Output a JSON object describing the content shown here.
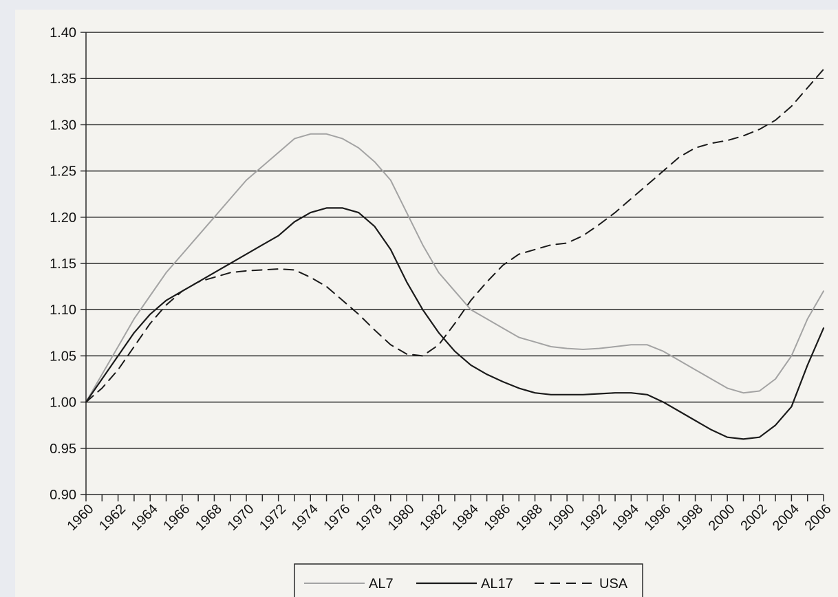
{
  "chart_data": {
    "type": "line",
    "x": [
      1960,
      1961,
      1962,
      1963,
      1964,
      1965,
      1966,
      1967,
      1968,
      1969,
      1970,
      1971,
      1972,
      1973,
      1974,
      1975,
      1976,
      1977,
      1978,
      1979,
      1980,
      1981,
      1982,
      1983,
      1984,
      1985,
      1986,
      1987,
      1988,
      1989,
      1990,
      1991,
      1992,
      1993,
      1994,
      1995,
      1996,
      1997,
      1998,
      1999,
      2000,
      2001,
      2002,
      2003,
      2004,
      2005,
      2006
    ],
    "x_tick_labels": [
      "1960",
      "1962",
      "1964",
      "1966",
      "1968",
      "1970",
      "1972",
      "1974",
      "1976",
      "1978",
      "1980",
      "1982",
      "1984",
      "1986",
      "1988",
      "1990",
      "1992",
      "1994",
      "1996",
      "1998",
      "2000",
      "2002",
      "2004",
      "2006"
    ],
    "y_tick_labels": [
      "1.40",
      "1.35",
      "1.30",
      "1.25",
      "1.20",
      "1.15",
      "1.10",
      "1.05",
      "1.00",
      "0.95",
      "0.90"
    ],
    "ylim": [
      0.9,
      1.4
    ],
    "grid": "horizontal",
    "legend_position": "bottom",
    "series": [
      {
        "name": "AL7",
        "style": "solid-light",
        "color": "#9a9a9a",
        "values": [
          1.0,
          1.03,
          1.06,
          1.09,
          1.115,
          1.14,
          1.16,
          1.18,
          1.2,
          1.22,
          1.24,
          1.255,
          1.27,
          1.285,
          1.29,
          1.29,
          1.285,
          1.275,
          1.26,
          1.24,
          1.205,
          1.17,
          1.14,
          1.12,
          1.1,
          1.09,
          1.08,
          1.07,
          1.065,
          1.06,
          1.058,
          1.057,
          1.058,
          1.06,
          1.062,
          1.062,
          1.055,
          1.045,
          1.035,
          1.025,
          1.015,
          1.01,
          1.012,
          1.025,
          1.05,
          1.09,
          1.12
        ]
      },
      {
        "name": "AL17",
        "style": "solid-dark",
        "color": "#1a1a1a",
        "values": [
          1.0,
          1.025,
          1.05,
          1.075,
          1.095,
          1.11,
          1.12,
          1.13,
          1.14,
          1.15,
          1.16,
          1.17,
          1.18,
          1.195,
          1.205,
          1.21,
          1.21,
          1.205,
          1.19,
          1.165,
          1.13,
          1.1,
          1.075,
          1.055,
          1.04,
          1.03,
          1.022,
          1.015,
          1.01,
          1.008,
          1.008,
          1.008,
          1.009,
          1.01,
          1.01,
          1.008,
          1.0,
          0.99,
          0.98,
          0.97,
          0.962,
          0.96,
          0.962,
          0.975,
          0.995,
          1.04,
          1.08
        ]
      },
      {
        "name": "USA",
        "style": "dashed",
        "color": "#1a1a1a",
        "values": [
          1.0,
          1.015,
          1.035,
          1.06,
          1.085,
          1.105,
          1.12,
          1.13,
          1.135,
          1.14,
          1.142,
          1.143,
          1.144,
          1.143,
          1.135,
          1.125,
          1.11,
          1.095,
          1.078,
          1.062,
          1.052,
          1.05,
          1.062,
          1.085,
          1.11,
          1.13,
          1.148,
          1.16,
          1.165,
          1.17,
          1.172,
          1.18,
          1.192,
          1.205,
          1.22,
          1.235,
          1.25,
          1.265,
          1.275,
          1.28,
          1.283,
          1.288,
          1.295,
          1.305,
          1.32,
          1.34,
          1.36
        ]
      }
    ]
  }
}
